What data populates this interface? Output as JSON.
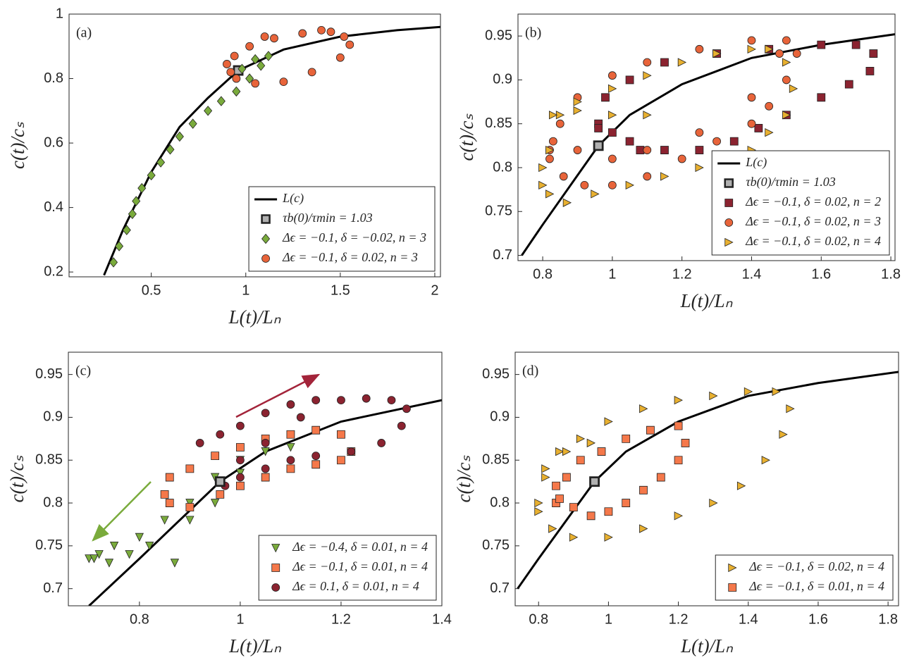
{
  "chart_data": [
    {
      "type": "scatter",
      "panel_label": "(a)",
      "xlabel": "L(t)/Lₙ",
      "ylabel": "c(t)/cₛ",
      "xlim": [
        0.065,
        2.03
      ],
      "ylim": [
        0.185,
        1.0
      ],
      "xticks": [
        0.5,
        1,
        1.5,
        2
      ],
      "yticks": [
        0.2,
        0.4,
        0.6,
        0.8,
        1
      ],
      "legend": "lower right",
      "series": [
        {
          "name": "L(c)",
          "marker": "line",
          "color": "#000000",
          "x": [
            0.25,
            0.35,
            0.5,
            0.65,
            0.8,
            0.96,
            1.2,
            1.5,
            1.8,
            2.03
          ],
          "values": [
            0.19,
            0.33,
            0.51,
            0.65,
            0.74,
            0.825,
            0.89,
            0.93,
            0.95,
            0.96
          ]
        },
        {
          "name": "τb(0)/τmin = 1.03",
          "marker": "square",
          "color": "#b0b0b0",
          "x": [
            0.96
          ],
          "values": [
            0.825
          ]
        },
        {
          "name": "Δϵ = −0.1, δ = −0.02, n = 3",
          "marker": "diamond",
          "color": "#7aab3c",
          "x": [
            0.3,
            0.33,
            0.37,
            0.4,
            0.42,
            0.45,
            0.5,
            0.55,
            0.6,
            0.65,
            0.72,
            0.8,
            0.87,
            0.95,
            1.02,
            1.08,
            1.12,
            1.05,
            0.98
          ],
          "values": [
            0.23,
            0.28,
            0.33,
            0.38,
            0.42,
            0.46,
            0.5,
            0.54,
            0.58,
            0.62,
            0.66,
            0.7,
            0.73,
            0.76,
            0.8,
            0.84,
            0.87,
            0.86,
            0.83
          ]
        },
        {
          "name": "Δϵ = −0.1, δ = 0.02, n = 3",
          "marker": "circle",
          "color": "#e8643a",
          "x": [
            0.92,
            0.95,
            1.05,
            1.2,
            1.35,
            1.5,
            1.55,
            1.52,
            1.45,
            1.3,
            1.15,
            1.02,
            0.94,
            0.9,
            1.1,
            1.4
          ],
          "values": [
            0.82,
            0.8,
            0.785,
            0.79,
            0.82,
            0.865,
            0.905,
            0.93,
            0.945,
            0.94,
            0.925,
            0.9,
            0.87,
            0.845,
            0.93,
            0.95
          ]
        }
      ]
    },
    {
      "type": "scatter",
      "panel_label": "(b)",
      "xlabel": "L(t)/Lₙ",
      "ylabel": "c(t)/cₛ",
      "xlim": [
        0.729,
        1.812
      ],
      "ylim": [
        0.694,
        0.975
      ],
      "xticks": [
        0.8,
        1,
        1.2,
        1.4,
        1.6,
        1.8
      ],
      "yticks": [
        0.7,
        0.75,
        0.8,
        0.85,
        0.9,
        0.95
      ],
      "legend": "lower right",
      "series": [
        {
          "name": "L(c)",
          "marker": "line",
          "color": "#000000",
          "x": [
            0.74,
            0.8,
            0.96,
            1.05,
            1.2,
            1.4,
            1.6,
            1.812
          ],
          "values": [
            0.7,
            0.735,
            0.825,
            0.86,
            0.895,
            0.925,
            0.94,
            0.952
          ]
        },
        {
          "name": "τb(0)/τmin = 1.03",
          "marker": "square",
          "color": "#b0b0b0",
          "x": [
            0.96
          ],
          "values": [
            0.825
          ]
        },
        {
          "name": "Δϵ = −0.1, δ = 0.02, n = 2",
          "marker": "square",
          "color": "#8b2330",
          "x": [
            0.96,
            0.98,
            1.05,
            1.15,
            1.3,
            1.45,
            1.6,
            1.7,
            1.75,
            1.74,
            1.68,
            1.6,
            1.5,
            1.42,
            1.35,
            1.25,
            1.15,
            1.08,
            1.05,
            1.0,
            0.96
          ],
          "values": [
            0.85,
            0.88,
            0.9,
            0.92,
            0.93,
            0.935,
            0.94,
            0.94,
            0.93,
            0.91,
            0.895,
            0.88,
            0.86,
            0.845,
            0.83,
            0.82,
            0.82,
            0.82,
            0.83,
            0.84,
            0.845
          ]
        },
        {
          "name": "Δϵ = −0.1, δ = 0.02, n = 3",
          "marker": "circle",
          "color": "#e8643a",
          "x": [
            0.82,
            0.85,
            0.9,
            1.0,
            1.1,
            1.25,
            1.4,
            1.5,
            1.53,
            1.5,
            1.45,
            1.4,
            1.3,
            1.2,
            1.1,
            1.0,
            0.92,
            0.86,
            0.82,
            0.83,
            0.9,
            1.0,
            1.1,
            1.25,
            1.4,
            1.48
          ],
          "values": [
            0.82,
            0.85,
            0.88,
            0.905,
            0.92,
            0.935,
            0.945,
            0.945,
            0.93,
            0.9,
            0.87,
            0.85,
            0.83,
            0.81,
            0.79,
            0.78,
            0.78,
            0.79,
            0.81,
            0.83,
            0.82,
            0.81,
            0.82,
            0.84,
            0.88,
            0.93
          ]
        },
        {
          "name": "Δϵ = −0.1, δ = 0.02, n = 4",
          "marker": "triangle-right",
          "color": "#e8b030",
          "x": [
            0.8,
            0.82,
            0.85,
            0.9,
            1.0,
            1.1,
            1.2,
            1.3,
            1.4,
            1.45,
            1.5,
            1.52,
            1.5,
            1.45,
            1.4,
            1.32,
            1.25,
            1.15,
            1.05,
            0.95,
            0.87,
            0.82,
            0.8,
            0.83,
            0.9,
            1.0,
            1.1
          ],
          "values": [
            0.78,
            0.82,
            0.86,
            0.875,
            0.89,
            0.905,
            0.92,
            0.93,
            0.935,
            0.935,
            0.92,
            0.89,
            0.86,
            0.84,
            0.82,
            0.81,
            0.8,
            0.79,
            0.78,
            0.77,
            0.76,
            0.77,
            0.8,
            0.86,
            0.865,
            0.86,
            0.86
          ]
        }
      ]
    },
    {
      "type": "scatter",
      "panel_label": "(c)",
      "xlabel": "L(t)/Lₙ",
      "ylabel": "c(t)/cₛ",
      "xlim": [
        0.659,
        1.4
      ],
      "ylim": [
        0.68,
        0.976
      ],
      "xticks": [
        0.8,
        1,
        1.2,
        1.4
      ],
      "yticks": [
        0.7,
        0.75,
        0.8,
        0.85,
        0.9,
        0.95
      ],
      "legend": "lower right",
      "series": [
        {
          "name": "Δϵ = −0.4, δ = 0.01, n = 4",
          "marker": "triangle-down",
          "color": "#7aab3c",
          "x": [
            0.7,
            0.72,
            0.75,
            0.8,
            0.85,
            0.9,
            0.95,
            1.0,
            1.05,
            1.1,
            1.0,
            0.95,
            0.9,
            0.87,
            0.82,
            0.78,
            0.74,
            0.71
          ],
          "values": [
            0.735,
            0.74,
            0.75,
            0.76,
            0.78,
            0.8,
            0.83,
            0.85,
            0.86,
            0.865,
            0.835,
            0.8,
            0.78,
            0.73,
            0.75,
            0.74,
            0.73,
            0.735
          ]
        },
        {
          "name": "Δϵ = −0.1, δ = 0.01, n = 4",
          "marker": "square",
          "color": "#f5784a",
          "x": [
            0.85,
            0.86,
            0.9,
            0.95,
            1.0,
            1.05,
            1.1,
            1.15,
            1.2,
            1.22,
            1.2,
            1.15,
            1.1,
            1.05,
            1.0,
            0.96,
            0.9,
            0.86
          ],
          "values": [
            0.81,
            0.83,
            0.84,
            0.855,
            0.865,
            0.875,
            0.88,
            0.885,
            0.88,
            0.86,
            0.85,
            0.845,
            0.84,
            0.83,
            0.82,
            0.81,
            0.795,
            0.8
          ]
        },
        {
          "name": "Δϵ = 0.1,   δ = 0.01, n = 4",
          "marker": "circle",
          "color": "#8b2330",
          "x": [
            0.92,
            0.96,
            1.0,
            1.05,
            1.1,
            1.15,
            1.2,
            1.25,
            1.3,
            1.33,
            1.32,
            1.28,
            1.22,
            1.15,
            1.1,
            1.05,
            1.0,
            0.97,
            1.0,
            1.05,
            1.12
          ],
          "values": [
            0.87,
            0.88,
            0.89,
            0.905,
            0.915,
            0.92,
            0.92,
            0.922,
            0.92,
            0.91,
            0.89,
            0.87,
            0.86,
            0.855,
            0.85,
            0.84,
            0.83,
            0.82,
            0.85,
            0.87,
            0.9
          ]
        },
        {
          "marker": "line",
          "color": "#000000",
          "x": [
            0.7,
            0.8,
            0.96,
            1.05,
            1.2,
            1.4
          ],
          "values": [
            0.68,
            0.735,
            0.825,
            0.86,
            0.895,
            0.92
          ]
        },
        {
          "marker": "square",
          "color": "#b0b0b0",
          "x": [
            0.96
          ],
          "values": [
            0.825
          ]
        }
      ]
    },
    {
      "type": "scatter",
      "panel_label": "(d)",
      "xlabel": "L(t)/Lₙ",
      "ylabel": "c(t)/cₛ",
      "xlim": [
        0.733,
        1.83
      ],
      "ylim": [
        0.68,
        0.976
      ],
      "xticks": [
        0.8,
        1,
        1.2,
        1.4,
        1.6,
        1.8
      ],
      "yticks": [
        0.7,
        0.75,
        0.8,
        0.85,
        0.9,
        0.95
      ],
      "legend": "lower right",
      "series": [
        {
          "name": "Δϵ = −0.1, δ = 0.02, n = 4",
          "marker": "triangle-right",
          "color": "#e8b030",
          "x": [
            0.8,
            0.82,
            0.86,
            0.92,
            1.0,
            1.1,
            1.2,
            1.3,
            1.4,
            1.48,
            1.52,
            1.5,
            1.45,
            1.38,
            1.3,
            1.2,
            1.1,
            1.0,
            0.9,
            0.84,
            0.8,
            0.82,
            0.88,
            0.95
          ],
          "values": [
            0.8,
            0.84,
            0.86,
            0.875,
            0.895,
            0.91,
            0.92,
            0.925,
            0.93,
            0.93,
            0.91,
            0.88,
            0.85,
            0.82,
            0.8,
            0.785,
            0.77,
            0.76,
            0.76,
            0.77,
            0.79,
            0.83,
            0.86,
            0.87
          ]
        },
        {
          "name": "Δϵ = −0.1, δ = 0.01, n = 4",
          "marker": "square",
          "color": "#f5784a",
          "x": [
            0.85,
            0.88,
            0.92,
            0.98,
            1.05,
            1.12,
            1.2,
            1.22,
            1.2,
            1.15,
            1.1,
            1.05,
            1.0,
            0.95,
            0.9,
            0.86,
            0.85
          ],
          "values": [
            0.8,
            0.83,
            0.85,
            0.86,
            0.875,
            0.885,
            0.89,
            0.87,
            0.85,
            0.83,
            0.815,
            0.8,
            0.79,
            0.785,
            0.795,
            0.805,
            0.82
          ]
        },
        {
          "marker": "line",
          "color": "#000000",
          "x": [
            0.74,
            0.8,
            0.96,
            1.05,
            1.2,
            1.4,
            1.6,
            1.83
          ],
          "values": [
            0.7,
            0.735,
            0.825,
            0.86,
            0.895,
            0.925,
            0.94,
            0.953
          ]
        },
        {
          "marker": "square",
          "color": "#b0b0b0",
          "x": [
            0.96
          ],
          "values": [
            0.825
          ]
        }
      ]
    }
  ]
}
